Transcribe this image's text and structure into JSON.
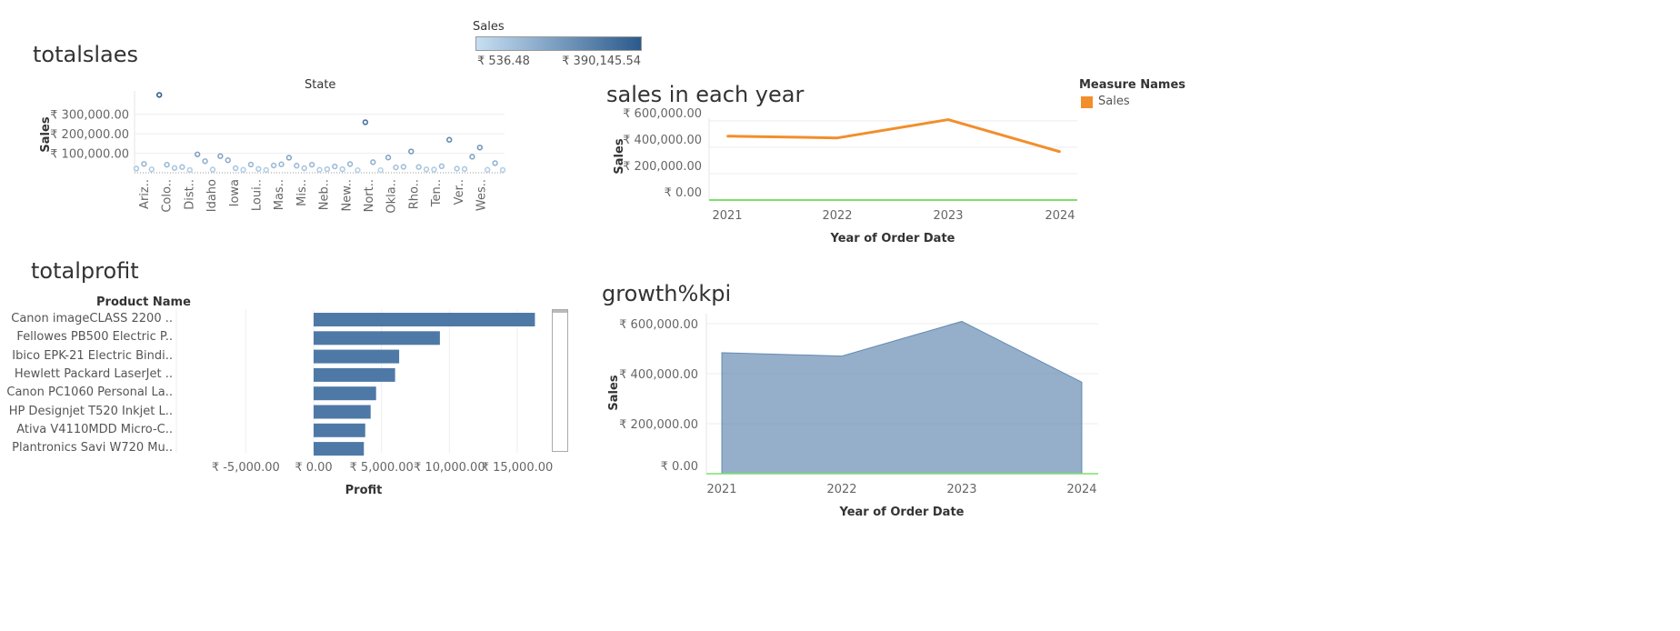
{
  "legend_sales": {
    "title": "Sales",
    "min_label": "₹ 536.48",
    "max_label": "₹ 390,145.54",
    "color_low": "#c6def2",
    "color_high": "#2b5a8c"
  },
  "legend_measure": {
    "title": "Measure Names",
    "items": [
      {
        "label": "Sales",
        "color": "#f28e2b"
      }
    ]
  },
  "chart_data": [
    {
      "id": "totalslaes",
      "type": "scatter",
      "title": "totalslaes",
      "header": "State",
      "ylabel": "Sales",
      "yticks": [
        "₹ 100,000.00",
        "₹ 200,000.00",
        "₹ 300,000.00"
      ],
      "ytick_values": [
        100000,
        200000,
        300000
      ],
      "ylim": [
        0,
        420000
      ],
      "x_tick_labels": [
        "Ariz..",
        "Colo..",
        "Dist..",
        "Idaho",
        "Iowa",
        "Loui..",
        "Mas..",
        "Mis..",
        "Neb..",
        "New..",
        "Nort..",
        "Okla..",
        "Rho..",
        "Ten..",
        "Ver..",
        "Wes.."
      ],
      "values": [
        12000,
        36000,
        8000,
        390145,
        32000,
        15000,
        20000,
        5000,
        85000,
        50000,
        7000,
        76000,
        55000,
        14000,
        6000,
        33000,
        10000,
        5000,
        28000,
        34000,
        68000,
        27000,
        14000,
        32000,
        6000,
        9000,
        23000,
        9000,
        35000,
        4000,
        250000,
        45000,
        4000,
        69000,
        18000,
        21000,
        100000,
        20000,
        8000,
        7000,
        24000,
        160000,
        12000,
        10000,
        73000,
        120000,
        6000,
        40000,
        5000
      ]
    },
    {
      "id": "sales_each_year",
      "type": "line",
      "title": "sales in each year",
      "xlabel": "Year of Order Date",
      "ylabel": "Sales",
      "yticks": [
        "₹ 0.00",
        "₹ 200,000.00",
        "₹ 400,000.00",
        "₹ 600,000.00"
      ],
      "ytick_values": [
        0,
        200000,
        400000,
        600000
      ],
      "ylim": [
        0,
        620000
      ],
      "x": [
        "2021",
        "2022",
        "2023",
        "2024"
      ],
      "series": [
        {
          "name": "Sales",
          "values": [
            484247,
            470533,
            609206,
            366000
          ]
        }
      ]
    },
    {
      "id": "totalprofit",
      "type": "bar",
      "title": "totalprofit",
      "header": "Product Name",
      "xlabel": "Profit",
      "xticks": [
        "₹ -5,000.00",
        "₹ 0.00",
        "₹ 5,000.00",
        "₹ 10,000.00",
        "₹ 15,000.00"
      ],
      "xtick_values": [
        -5000,
        0,
        5000,
        10000,
        15000
      ],
      "xlim": [
        -10000,
        17500
      ],
      "categories": [
        "Canon imageCLASS 2200 ..",
        "Fellowes PB500 Electric P..",
        "Ibico EPK-21 Electric Bindi..",
        "Hewlett Packard LaserJet ..",
        "Canon PC1060 Personal La..",
        "HP Designjet T520 Inkjet L..",
        "Ativa V4110MDD Micro-C..",
        "Plantronics Savi W720 Mu.."
      ],
      "values": [
        16300,
        9300,
        6300,
        6000,
        4600,
        4200,
        3800,
        3700
      ]
    },
    {
      "id": "growth_kpi",
      "type": "area",
      "title": "growth%kpi",
      "xlabel": "Year of Order Date",
      "ylabel": "Sales",
      "yticks": [
        "₹ 0.00",
        "₹ 200,000.00",
        "₹ 400,000.00",
        "₹ 600,000.00"
      ],
      "ytick_values": [
        0,
        200000,
        400000,
        600000
      ],
      "ylim": [
        0,
        640000
      ],
      "x": [
        "2021",
        "2022",
        "2023",
        "2024"
      ],
      "values": [
        484247,
        470533,
        609206,
        366000
      ],
      "color": "#4e79a7"
    }
  ]
}
